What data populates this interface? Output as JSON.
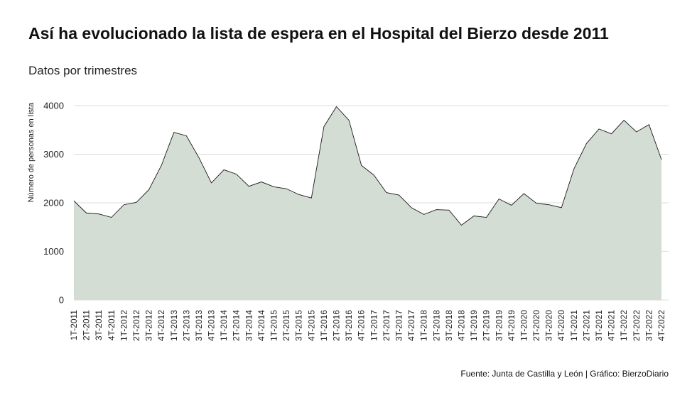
{
  "title": "Así ha evolucionado la lista de espera en el Hospital del Bierzo desde 2011",
  "subtitle": "Datos por trimestres",
  "source": "Fuente: Junta de Castilla y León | Gráfico: BierzoDiario",
  "chart_data": {
    "type": "area",
    "ylabel": "Número de personas en lista",
    "xlabel": "",
    "ylim": [
      0,
      4000
    ],
    "yticks": [
      0,
      1000,
      2000,
      3000,
      4000
    ],
    "grid": "horizontal",
    "fill_color": "#d3ddd3",
    "line_color": "#1a1a1a",
    "categories": [
      "1T-2011",
      "2T-2011",
      "3T-2011",
      "4T-2011",
      "1T-2012",
      "2T-2012",
      "3T-2012",
      "4T-2012",
      "1T-2013",
      "2T-2013",
      "3T-2013",
      "4T-2013",
      "1T-2014",
      "2T-2014",
      "3T-2014",
      "4T-2014",
      "1T-2015",
      "2T-2015",
      "3T-2015",
      "4T-2015",
      "1T-2016",
      "2T-2016",
      "3T-2016",
      "4T-2016",
      "1T-2017",
      "2T-2017",
      "3T-2017",
      "4T-2017",
      "1T-2018",
      "2T-2018",
      "3T-2018",
      "4T-2018",
      "1T-2019",
      "2T-2019",
      "3T-2019",
      "4T-2019",
      "1T-2020",
      "2T-2020",
      "3T-2020",
      "4T-2020",
      "1T-2021",
      "2T-2021",
      "3T-2021",
      "4T-2021",
      "1T-2022",
      "2T-2022",
      "3T-2022",
      "4T-2022"
    ],
    "values": [
      2040,
      1790,
      1770,
      1700,
      1960,
      2010,
      2270,
      2770,
      3450,
      3380,
      2930,
      2410,
      2680,
      2590,
      2340,
      2430,
      2330,
      2290,
      2170,
      2100,
      3570,
      3980,
      3700,
      2770,
      2570,
      2210,
      2160,
      1900,
      1760,
      1860,
      1850,
      1540,
      1730,
      1700,
      2080,
      1950,
      2190,
      1990,
      1960,
      1900,
      2700,
      3220,
      3520,
      3420,
      3700,
      3460,
      3610,
      2890
    ]
  }
}
